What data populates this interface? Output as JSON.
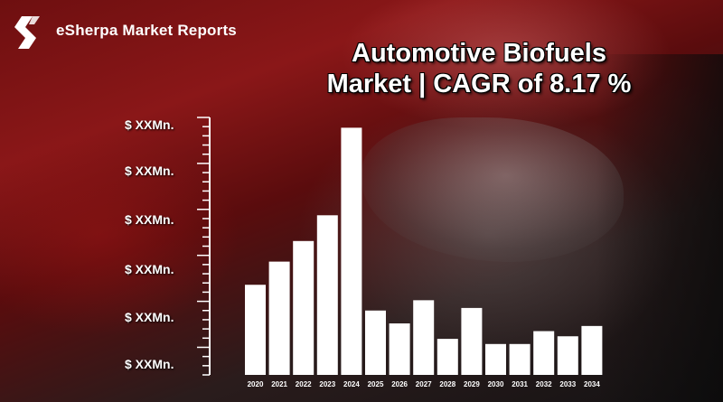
{
  "brand": {
    "name": "eSherpa Market Reports"
  },
  "chart_data": {
    "type": "bar",
    "title_line1": "Automotive Biofuels",
    "title_line2": "Market | CAGR of 8.17 %",
    "y_tick_labels": [
      "$ XXMn.",
      "$ XXMn.",
      "$ XXMn.",
      "$ XXMn.",
      "$ XXMn.",
      "$ XXMn."
    ],
    "categories": [
      "2020",
      "2021",
      "2022",
      "2023",
      "2024",
      "2025",
      "2026",
      "2027",
      "2028",
      "2029",
      "2030",
      "2031",
      "2032",
      "2033",
      "2034"
    ],
    "values": [
      35,
      44,
      52,
      62,
      96,
      25,
      20,
      29,
      14,
      26,
      12,
      12,
      17,
      15,
      19
    ],
    "ylim": [
      0,
      100
    ],
    "bar_color": "#ffffff",
    "grid": false
  }
}
